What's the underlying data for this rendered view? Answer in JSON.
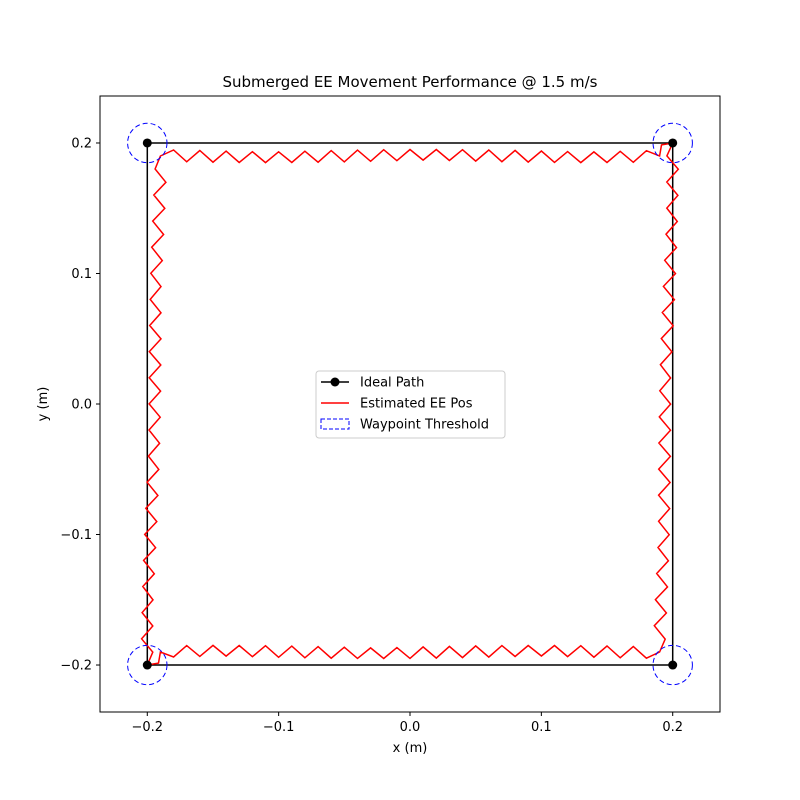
{
  "chart_data": {
    "type": "line",
    "title": "Submerged EE Movement Performance @ 1.5 m/s",
    "xlabel": "x (m)",
    "ylabel": "y (m)",
    "xlim": [
      -0.236,
      0.236
    ],
    "ylim": [
      -0.236,
      0.236
    ],
    "xticks": [
      -0.2,
      -0.1,
      0.0,
      0.1,
      0.2
    ],
    "yticks": [
      -0.2,
      -0.1,
      0.0,
      0.1,
      0.2
    ],
    "xtick_labels": [
      "−0.2",
      "−0.1",
      "0.0",
      "0.1",
      "0.2"
    ],
    "ytick_labels": [
      "−0.2",
      "−0.1",
      "0.0",
      "0.1",
      "0.2"
    ],
    "grid": false,
    "legend_position": "center",
    "legend": [
      {
        "label": "Ideal Path",
        "color": "#000000",
        "style": "line-marker"
      },
      {
        "label": "Estimated EE Pos",
        "color": "#ff0000",
        "style": "line"
      },
      {
        "label": "Waypoint Threshold",
        "color": "#0000ff",
        "style": "dashed-box"
      }
    ],
    "ideal_path": {
      "name": "Ideal Path",
      "color": "#000000",
      "x": [
        -0.2,
        0.2,
        0.2,
        -0.2,
        -0.2
      ],
      "y": [
        0.2,
        0.2,
        -0.2,
        -0.2,
        0.2
      ]
    },
    "estimated_path": {
      "name": "Estimated EE Pos",
      "color": "#ff0000",
      "corners_x": [
        -0.2,
        -0.19,
        0.19,
        0.2,
        0.19,
        -0.19
      ],
      "corners_y": [
        -0.2,
        -0.19,
        -0.19,
        0.2,
        0.19,
        0.19
      ],
      "approx_amplitude": 0.005,
      "approx_oscillation_period": 0.02,
      "bottom_edge_y_range": [
        -0.193,
        -0.172
      ],
      "top_edge_y_range": [
        0.168,
        0.2
      ],
      "left_edge_x_range": [
        -0.2,
        -0.165
      ],
      "right_edge_x_range": [
        0.165,
        0.2
      ]
    },
    "waypoint_threshold": {
      "name": "Waypoint Threshold",
      "color": "#0000ff",
      "radius": 0.015,
      "centers": [
        [
          -0.2,
          0.2
        ],
        [
          0.2,
          0.2
        ],
        [
          0.2,
          -0.2
        ],
        [
          -0.2,
          -0.2
        ]
      ]
    }
  }
}
